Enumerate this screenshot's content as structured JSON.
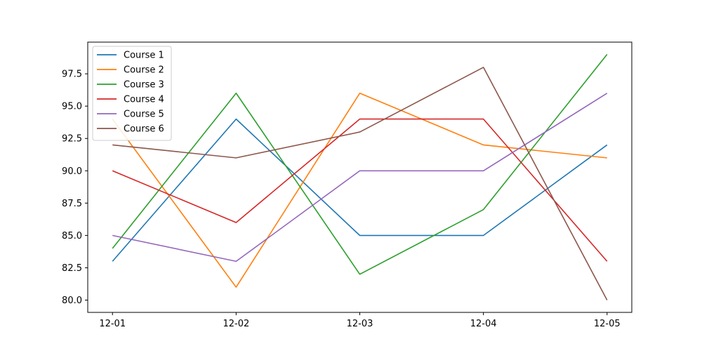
{
  "chart_data": {
    "type": "line",
    "title": "",
    "xlabel": "",
    "ylabel": "",
    "x": [
      "12-01",
      "12-02",
      "12-03",
      "12-04",
      "12-05"
    ],
    "ylim": [
      79.05,
      99.95
    ],
    "yticks": [
      80.0,
      82.5,
      85.0,
      87.5,
      90.0,
      92.5,
      95.0,
      97.5
    ],
    "ytick_labels": [
      "80.0",
      "82.5",
      "85.0",
      "87.5",
      "90.0",
      "92.5",
      "95.0",
      "97.5"
    ],
    "grid": false,
    "legend_position": "top-left",
    "series": [
      {
        "name": "Course 1",
        "color": "#1f77b4",
        "values": [
          83,
          94,
          85,
          85,
          92
        ]
      },
      {
        "name": "Course 2",
        "color": "#ff7f0e",
        "values": [
          94,
          81,
          96,
          92,
          91
        ]
      },
      {
        "name": "Course 3",
        "color": "#2ca02c",
        "values": [
          84,
          96,
          82,
          87,
          99
        ]
      },
      {
        "name": "Course 4",
        "color": "#d62728",
        "values": [
          90,
          86,
          94,
          94,
          83
        ]
      },
      {
        "name": "Course 5",
        "color": "#9467bd",
        "values": [
          85,
          83,
          90,
          90,
          96
        ]
      },
      {
        "name": "Course 6",
        "color": "#8c564b",
        "values": [
          92,
          91,
          93,
          98,
          80
        ]
      }
    ]
  }
}
